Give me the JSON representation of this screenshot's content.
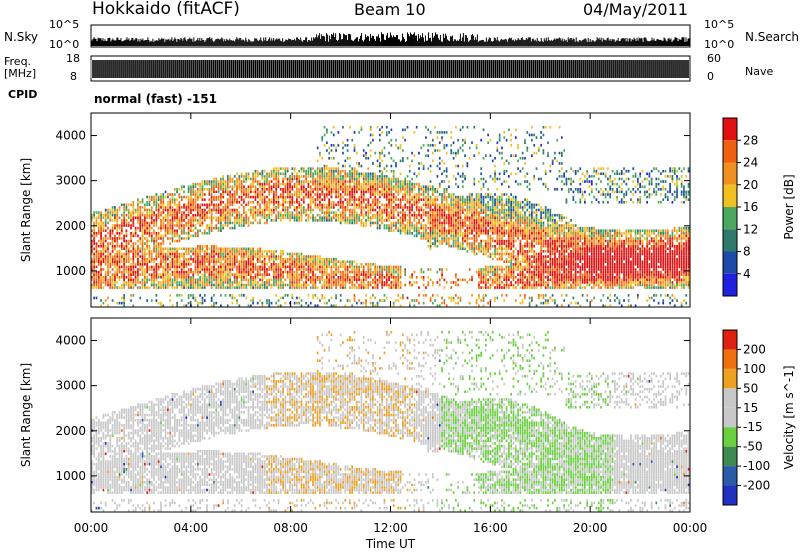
{
  "header": {
    "title_left": "Hokkaido (fitACF)",
    "title_center": "Beam 10",
    "title_right": "04/May/2011"
  },
  "labels": {
    "nsky": "N.Sky",
    "freq_line1": "Freq.",
    "freq_line2": "[MHz]",
    "cpid": "CPID",
    "nsearch": "N.Search",
    "nave": "Nave",
    "mode": "normal (fast) -151",
    "nsky_top": "10^5",
    "nsky_bottom": "10^0",
    "nsearch_top": "10^5",
    "nsearch_bottom": "10^0",
    "freq_top": "18",
    "freq_bottom": "8",
    "nave_top": "60",
    "nave_bottom": "0"
  },
  "colors": {
    "power_scale": [
      "#2020e0",
      "#1e4aa8",
      "#2f7a6a",
      "#4aa860",
      "#f0c020",
      "#f09020",
      "#f06010",
      "#e01010"
    ],
    "velocity_scale": [
      "#2030c0",
      "#2a5aa8",
      "#3e8a50",
      "#6ad040",
      "#c8c8c8",
      "#c8c8c8",
      "#f0a020",
      "#f07010",
      "#e02010"
    ]
  },
  "chart_data": [
    {
      "type": "heatmap",
      "name": "power-panel",
      "xlabel": "",
      "ylabel": "Slant Range [km]",
      "x_ticks": [
        "00:00",
        "04:00",
        "08:00",
        "12:00",
        "16:00",
        "20:00",
        "00:00"
      ],
      "y_ticks": [
        1000,
        2000,
        3000,
        4000
      ],
      "xlim_hours": [
        0,
        24
      ],
      "ylim_km": [
        200,
        4500
      ],
      "colorbar": {
        "label": "Power [dB]",
        "ticks": [
          4,
          8,
          12,
          16,
          20,
          24,
          28
        ]
      }
    },
    {
      "type": "heatmap",
      "name": "velocity-panel",
      "xlabel": "Time UT",
      "ylabel": "Slant Range [km]",
      "x_ticks": [
        "00:00",
        "04:00",
        "08:00",
        "12:00",
        "16:00",
        "20:00",
        "00:00"
      ],
      "y_ticks": [
        1000,
        2000,
        3000,
        4000
      ],
      "xlim_hours": [
        0,
        24
      ],
      "ylim_km": [
        200,
        4500
      ],
      "colorbar": {
        "label": "Velocity [m s^-1]",
        "ticks": [
          200,
          100,
          50,
          15,
          -15,
          -50,
          -100,
          -200
        ]
      }
    }
  ]
}
